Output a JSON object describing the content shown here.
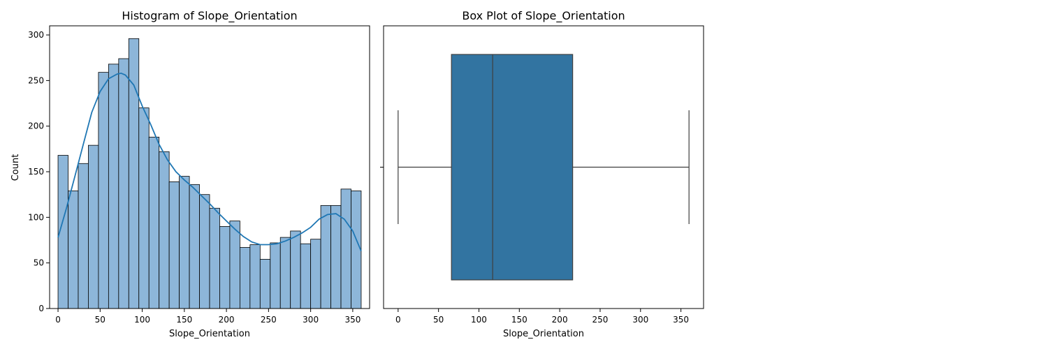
{
  "chart_data": [
    {
      "type": "bar",
      "subtype": "histogram-with-kde",
      "title": "Histogram of Slope_Orientation",
      "xlabel": "Slope_Orientation",
      "ylabel": "Count",
      "xlim": [
        -10,
        370
      ],
      "ylim": [
        0,
        310
      ],
      "xticks": [
        0,
        50,
        100,
        150,
        200,
        250,
        300,
        350
      ],
      "yticks": [
        0,
        50,
        100,
        150,
        200,
        250,
        300
      ],
      "bin_width": 12,
      "bins_start": 0,
      "values": [
        168,
        129,
        159,
        179,
        259,
        268,
        274,
        296,
        220,
        188,
        172,
        139,
        145,
        136,
        125,
        110,
        90,
        96,
        67,
        70,
        54,
        72,
        78,
        85,
        71,
        76,
        113,
        113,
        131,
        129
      ],
      "kde": {
        "x": [
          0,
          10,
          20,
          30,
          40,
          50,
          60,
          70,
          75,
          80,
          90,
          100,
          110,
          120,
          130,
          140,
          150,
          160,
          170,
          180,
          190,
          200,
          210,
          220,
          230,
          240,
          250,
          260,
          270,
          280,
          290,
          300,
          310,
          320,
          330,
          340,
          350,
          360
        ],
        "y": [
          78,
          110,
          145,
          180,
          215,
          238,
          252,
          257,
          258,
          256,
          245,
          222,
          202,
          180,
          163,
          150,
          141,
          133,
          124,
          115,
          105,
          96,
          87,
          79,
          73,
          70,
          70,
          71,
          74,
          78,
          83,
          89,
          98,
          103,
          104,
          98,
          85,
          63
        ]
      },
      "bar_color": "#8db6d9",
      "line_color": "#1f77b4",
      "grid": false
    },
    {
      "type": "box",
      "title": "Box Plot of Slope_Orientation",
      "xlabel": "Slope_Orientation",
      "xlim": [
        -18,
        378
      ],
      "xticks": [
        0,
        50,
        100,
        150,
        200,
        250,
        300,
        350
      ],
      "stats": {
        "min": 0,
        "q1": 66,
        "median": 117,
        "q3": 216,
        "max": 360
      },
      "box_color": "#3274a1",
      "grid": false
    }
  ]
}
